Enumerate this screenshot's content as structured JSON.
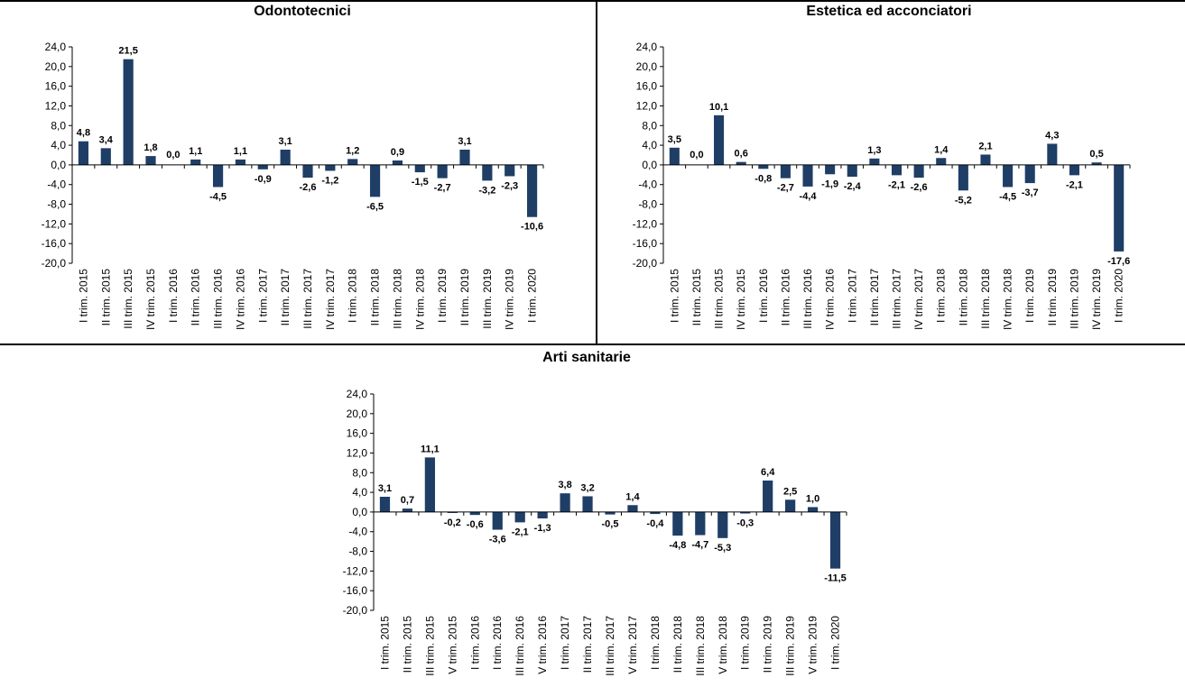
{
  "colors": {
    "bar": "#1F3E66",
    "axis": "#000000"
  },
  "chart_data": [
    {
      "type": "bar",
      "title": "Odontotecnici",
      "ylim": [
        -20,
        24
      ],
      "yticks": [
        "24,0",
        "20,0",
        "16,0",
        "12,0",
        "8,0",
        "4,0",
        "0,0",
        "-4,0",
        "-8,0",
        "-12,0",
        "-16,0",
        "-20,0"
      ],
      "categories": [
        "I trim. 2015",
        "II trim. 2015",
        "III trim. 2015",
        "IV trim. 2015",
        "I trim. 2016",
        "II trim. 2016",
        "III trim. 2016",
        "IV trim. 2016",
        "I trim. 2017",
        "II trim. 2017",
        "III trim. 2017",
        "IV trim. 2017",
        "I trim. 2018",
        "II trim. 2018",
        "III trim. 2018",
        "IV trim. 2018",
        "I trim. 2019",
        "II trim. 2019",
        "III trim. 2019",
        "IV trim. 2019",
        "I trim. 2020"
      ],
      "values": [
        4.8,
        3.4,
        21.5,
        1.8,
        0.0,
        1.1,
        -4.5,
        1.1,
        -0.9,
        3.1,
        -2.6,
        -1.2,
        1.2,
        -6.5,
        0.9,
        -1.5,
        -2.7,
        3.1,
        -3.2,
        -2.3,
        -10.6
      ],
      "labels": [
        "4,8",
        "3,4",
        "21,5",
        "1,8",
        "0,0",
        "1,1",
        "-4,5",
        "1,1",
        "-0,9",
        "3,1",
        "-2,6",
        "-1,2",
        "1,2",
        "-6,5",
        "0,9",
        "-1,5",
        "-2,7",
        "3,1",
        "-3,2",
        "-2,3",
        "-10,6"
      ]
    },
    {
      "type": "bar",
      "title": "Estetica ed acconciatori",
      "ylim": [
        -20,
        24
      ],
      "yticks": [
        "24,0",
        "20,0",
        "16,0",
        "12,0",
        "8,0",
        "4,0",
        "0,0",
        "-4,0",
        "-8,0",
        "-12,0",
        "-16,0",
        "-20,0"
      ],
      "categories": [
        "I trim. 2015",
        "II trim. 2015",
        "III trim. 2015",
        "IV trim. 2015",
        "I trim. 2016",
        "II trim. 2016",
        "III trim. 2016",
        "IV trim. 2016",
        "I trim. 2017",
        "II trim. 2017",
        "III trim. 2017",
        "IV trim. 2017",
        "I trim. 2018",
        "II trim. 2018",
        "III trim. 2018",
        "IV trim. 2018",
        "I trim. 2019",
        "II trim. 2019",
        "III trim. 2019",
        "IV trim. 2019",
        "I trim. 2020"
      ],
      "values": [
        3.5,
        0.0,
        10.1,
        0.6,
        -0.8,
        -2.7,
        -4.4,
        -1.9,
        -2.4,
        1.3,
        -2.1,
        -2.6,
        1.4,
        -5.2,
        2.1,
        -4.5,
        -3.7,
        4.3,
        -2.1,
        0.5,
        -17.6
      ],
      "labels": [
        "3,5",
        "0,0",
        "10,1",
        "0,6",
        "-0,8",
        "-2,7",
        "-4,4",
        "-1,9",
        "-2,4",
        "1,3",
        "-2,1",
        "-2,6",
        "1,4",
        "-5,2",
        "2,1",
        "-4,5",
        "-3,7",
        "4,3",
        "-2,1",
        "0,5",
        "-17,6"
      ]
    },
    {
      "type": "bar",
      "title": "Arti sanitarie",
      "ylim": [
        -20,
        24
      ],
      "yticks": [
        "24,0",
        "20,0",
        "16,0",
        "12,0",
        "8,0",
        "4,0",
        "0,0",
        "-4,0",
        "-8,0",
        "-12,0",
        "-16,0",
        "-20,0"
      ],
      "categories": [
        "I trim. 2015",
        "II trim. 2015",
        "III trim. 2015",
        "V trim. 2015",
        "I trim. 2016",
        "I trim. 2016",
        "III trim. 2016",
        "V trim. 2016",
        "I trim. 2017",
        "II trim. 2017",
        "III trim. 2017",
        "V trim. 2017",
        "I trim. 2018",
        "II trim. 2018",
        "III trim. 2018",
        "V trim. 2018",
        "I trim. 2019",
        "II trim. 2019",
        "III trim. 2019",
        "V trim. 2019",
        "I trim. 2020"
      ],
      "values": [
        3.1,
        0.7,
        11.1,
        -0.2,
        -0.6,
        -3.6,
        -2.1,
        -1.3,
        3.8,
        3.2,
        -0.5,
        1.4,
        -0.4,
        -4.8,
        -4.7,
        -5.3,
        -0.3,
        6.4,
        2.5,
        1.0,
        -11.5
      ],
      "labels": [
        "3,1",
        "0,7",
        "11,1",
        "-0,2",
        "-0,6",
        "-3,6",
        "-2,1",
        "-1,3",
        "3,8",
        "3,2",
        "-0,5",
        "1,4",
        "-0,4",
        "-4,8",
        "-4,7",
        "-5,3",
        "-0,3",
        "6,4",
        "2,5",
        "1,0",
        "-11,5"
      ]
    }
  ]
}
